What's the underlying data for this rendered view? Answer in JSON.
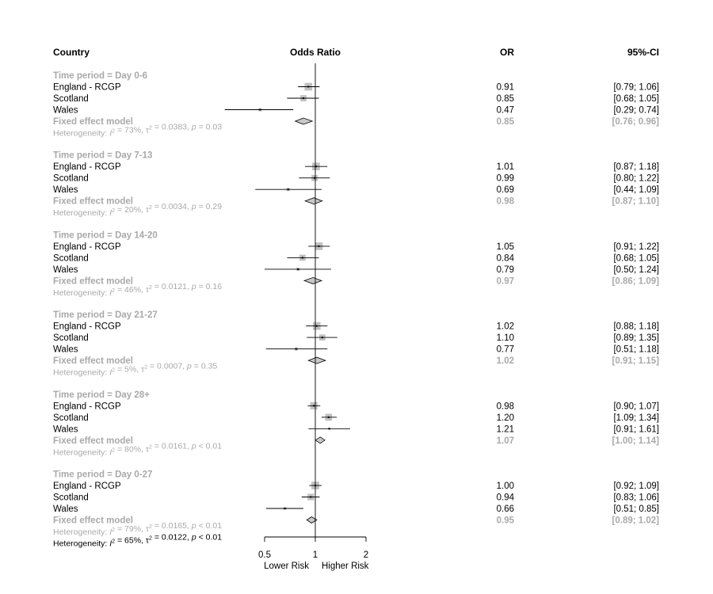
{
  "chart_data": {
    "type": "forest",
    "headers": {
      "study": "Country",
      "effect": "Odds Ratio",
      "or": "OR",
      "ci": "95%-CI"
    },
    "x_axis": {
      "scale": "log",
      "xlim": [
        0.5,
        2
      ],
      "reference_line": 1,
      "ticks": [
        0.5,
        1,
        2
      ],
      "tick_labels": [
        "0.5",
        "1",
        "2"
      ],
      "left_label": "Lower Risk",
      "right_label": "Higher Risk"
    },
    "colors": {
      "subgroup_text": "#a9a9a9",
      "point_fill": "#c0c0c0",
      "diamond_fill": "#c8c8c8",
      "line": "#000000"
    },
    "subgroups": [
      {
        "label": "Time period = Day 0-6",
        "studies": [
          {
            "name": "England - RCGP",
            "or": 0.91,
            "lower": 0.79,
            "upper": 1.06,
            "or_text": "0.91",
            "ci_text": "[0.79; 1.06]",
            "weight": 0.55
          },
          {
            "name": "Scotland",
            "or": 0.85,
            "lower": 0.68,
            "upper": 1.05,
            "or_text": "0.85",
            "ci_text": "[0.68; 1.05]",
            "weight": 0.35
          },
          {
            "name": "Wales",
            "or": 0.47,
            "lower": 0.29,
            "upper": 0.74,
            "or_text": "0.47",
            "ci_text": "[0.29; 0.74]",
            "weight": 0.1
          }
        ],
        "fixed": {
          "label": "Fixed effect model",
          "or": 0.85,
          "lower": 0.76,
          "upper": 0.96,
          "or_text": "0.85",
          "ci_text": "[0.76; 0.96]"
        },
        "het": {
          "i2": "73%",
          "tau2": "0.0383",
          "p": "0.03",
          "p_op": "="
        }
      },
      {
        "label": "Time period = Day 7-13",
        "studies": [
          {
            "name": "England - RCGP",
            "or": 1.01,
            "lower": 0.87,
            "upper": 1.18,
            "or_text": "1.01",
            "ci_text": "[0.87; 1.18]",
            "weight": 0.55
          },
          {
            "name": "Scotland",
            "or": 0.99,
            "lower": 0.8,
            "upper": 1.22,
            "or_text": "0.99",
            "ci_text": "[0.80; 1.22]",
            "weight": 0.35
          },
          {
            "name": "Wales",
            "or": 0.69,
            "lower": 0.44,
            "upper": 1.09,
            "or_text": "0.69",
            "ci_text": "[0.44; 1.09]",
            "weight": 0.1
          }
        ],
        "fixed": {
          "label": "Fixed effect model",
          "or": 0.98,
          "lower": 0.87,
          "upper": 1.1,
          "or_text": "0.98",
          "ci_text": "[0.87; 1.10]"
        },
        "het": {
          "i2": "20%",
          "tau2": "0.0034",
          "p": "0.29",
          "p_op": "="
        }
      },
      {
        "label": "Time period = Day 14-20",
        "studies": [
          {
            "name": "England - RCGP",
            "or": 1.05,
            "lower": 0.91,
            "upper": 1.22,
            "or_text": "1.05",
            "ci_text": "[0.91; 1.22]",
            "weight": 0.55
          },
          {
            "name": "Scotland",
            "or": 0.84,
            "lower": 0.68,
            "upper": 1.05,
            "or_text": "0.84",
            "ci_text": "[0.68; 1.05]",
            "weight": 0.35
          },
          {
            "name": "Wales",
            "or": 0.79,
            "lower": 0.5,
            "upper": 1.24,
            "or_text": "0.79",
            "ci_text": "[0.50; 1.24]",
            "weight": 0.1
          }
        ],
        "fixed": {
          "label": "Fixed effect model",
          "or": 0.97,
          "lower": 0.86,
          "upper": 1.09,
          "or_text": "0.97",
          "ci_text": "[0.86; 1.09]"
        },
        "het": {
          "i2": "46%",
          "tau2": "0.0121",
          "p": "0.16",
          "p_op": "="
        }
      },
      {
        "label": "Time period = Day 21-27",
        "studies": [
          {
            "name": "England - RCGP",
            "or": 1.02,
            "lower": 0.88,
            "upper": 1.18,
            "or_text": "1.02",
            "ci_text": "[0.88; 1.18]",
            "weight": 0.55
          },
          {
            "name": "Scotland",
            "or": 1.1,
            "lower": 0.89,
            "upper": 1.35,
            "or_text": "1.10",
            "ci_text": "[0.89; 1.35]",
            "weight": 0.35
          },
          {
            "name": "Wales",
            "or": 0.77,
            "lower": 0.51,
            "upper": 1.18,
            "or_text": "0.77",
            "ci_text": "[0.51; 1.18]",
            "weight": 0.1
          }
        ],
        "fixed": {
          "label": "Fixed effect model",
          "or": 1.02,
          "lower": 0.91,
          "upper": 1.15,
          "or_text": "1.02",
          "ci_text": "[0.91; 1.15]"
        },
        "het": {
          "i2": "5%",
          "tau2": "0.0007",
          "p": "0.35",
          "p_op": "="
        }
      },
      {
        "label": "Time period = Day 28+",
        "studies": [
          {
            "name": "England - RCGP",
            "or": 0.98,
            "lower": 0.9,
            "upper": 1.07,
            "or_text": "0.98",
            "ci_text": "[0.90; 1.07]",
            "weight": 0.5
          },
          {
            "name": "Scotland",
            "or": 1.2,
            "lower": 1.09,
            "upper": 1.34,
            "or_text": "1.20",
            "ci_text": "[1.09; 1.34]",
            "weight": 0.45
          },
          {
            "name": "Wales",
            "or": 1.21,
            "lower": 0.91,
            "upper": 1.61,
            "or_text": "1.21",
            "ci_text": "[0.91; 1.61]",
            "weight": 0.05
          }
        ],
        "fixed": {
          "label": "Fixed effect model",
          "or": 1.07,
          "lower": 1.0,
          "upper": 1.14,
          "or_text": "1.07",
          "ci_text": "[1.00; 1.14]"
        },
        "het": {
          "i2": "80%",
          "tau2": "0.0161",
          "p": "0.01",
          "p_op": "<"
        }
      },
      {
        "label": "Time period = Day 0-27",
        "studies": [
          {
            "name": "England - RCGP",
            "or": 1.0,
            "lower": 0.92,
            "upper": 1.09,
            "or_text": "1.00",
            "ci_text": "[0.92; 1.09]",
            "weight": 0.55
          },
          {
            "name": "Scotland",
            "or": 0.94,
            "lower": 0.83,
            "upper": 1.06,
            "or_text": "0.94",
            "ci_text": "[0.83; 1.06]",
            "weight": 0.4
          },
          {
            "name": "Wales",
            "or": 0.66,
            "lower": 0.51,
            "upper": 0.85,
            "or_text": "0.66",
            "ci_text": "[0.51; 0.85]",
            "weight": 0.08
          }
        ],
        "fixed": {
          "label": "Fixed effect model",
          "or": 0.95,
          "lower": 0.89,
          "upper": 1.02,
          "or_text": "0.95",
          "ci_text": "[0.89; 1.02]"
        },
        "het": {
          "i2": "79%",
          "tau2": "0.0165",
          "p": "0.01",
          "p_op": "<"
        }
      }
    ],
    "overall_het": {
      "i2": "65%",
      "tau2": "0.0122",
      "p": "0.01",
      "p_op": "<"
    }
  }
}
